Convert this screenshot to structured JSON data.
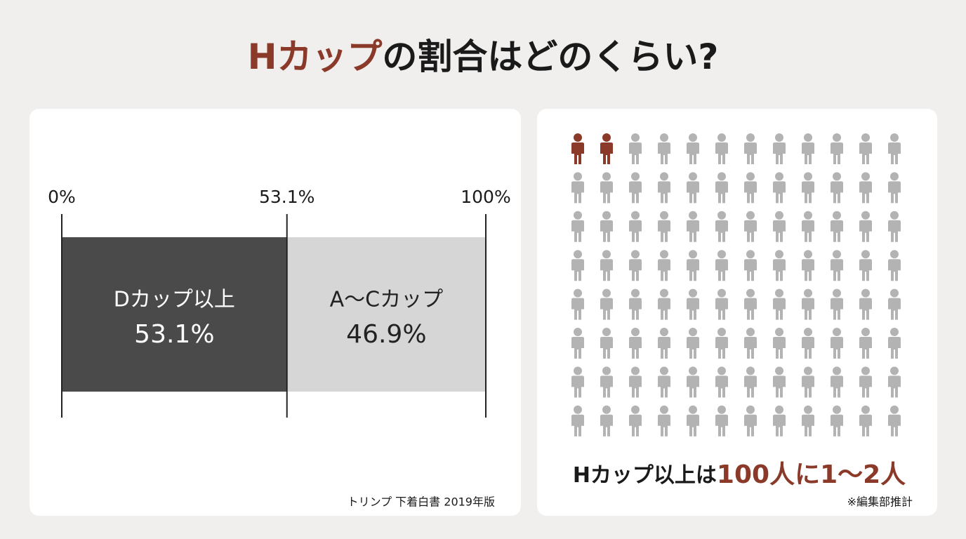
{
  "title": {
    "highlight": "Hカップ",
    "rest": "の割合はどのくらい?",
    "highlight_color": "#8b3a2a"
  },
  "chart_data": [
    {
      "type": "stacked_bar",
      "series": [
        {
          "name": "Dカップ以上",
          "color": "#4a4a4a",
          "text_color": "#ffffff",
          "values": [
            53.1
          ],
          "value_labels": [
            "53.1%"
          ]
        },
        {
          "name": "A〜Cカップ",
          "color": "#d6d6d6",
          "text_color": "#222222",
          "values": [
            46.9
          ],
          "value_labels": [
            "46.9%"
          ]
        }
      ],
      "xlim": [
        0,
        100
      ],
      "xticks": [
        {
          "value": 0,
          "label": "0%"
        },
        {
          "value": 53.1,
          "label": "53.1%"
        },
        {
          "value": 100,
          "label": "100%"
        }
      ],
      "source": "トリンプ 下着白書 2019年版"
    },
    {
      "type": "pictograph",
      "rows": 8,
      "columns": 12,
      "total": 96,
      "highlighted": 2,
      "highlight_color": "#8b3a2a",
      "color": "#b3b3b3",
      "caption": {
        "lead": "Hカップ以上は",
        "emphasis": "100人に1〜2人"
      },
      "note": "※編集部推計"
    }
  ]
}
